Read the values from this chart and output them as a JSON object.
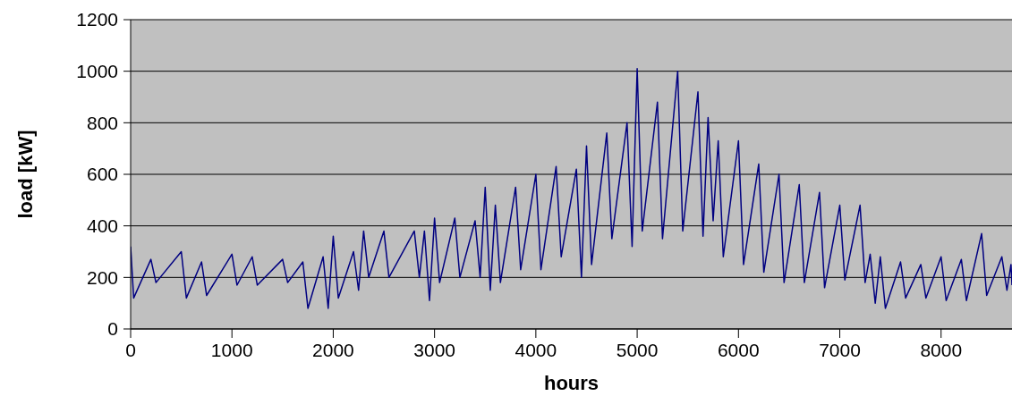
{
  "chart_data": {
    "type": "line",
    "xlabel": "hours",
    "ylabel": "load [kW]",
    "color": "#000080",
    "marker": "none",
    "grid": "y",
    "x": [
      0,
      30,
      200,
      250,
      500,
      550,
      700,
      750,
      1000,
      1050,
      1200,
      1250,
      1500,
      1550,
      1700,
      1750,
      1900,
      1950,
      2000,
      2050,
      2200,
      2250,
      2300,
      2350,
      2500,
      2550,
      2800,
      2850,
      2900,
      2950,
      3000,
      3050,
      3200,
      3250,
      3400,
      3450,
      3500,
      3550,
      3600,
      3650,
      3800,
      3850,
      4000,
      4050,
      4200,
      4250,
      4400,
      4450,
      4500,
      4550,
      4700,
      4750,
      4900,
      4950,
      5000,
      5050,
      5200,
      5250,
      5400,
      5450,
      5600,
      5650,
      5700,
      5750,
      5800,
      5850,
      6000,
      6050,
      6200,
      6250,
      6400,
      6450,
      6600,
      6650,
      6800,
      6850,
      7000,
      7050,
      7200,
      7250,
      7300,
      7350,
      7400,
      7450,
      7600,
      7650,
      7800,
      7850,
      8000,
      8050,
      8200,
      8250,
      8400,
      8450,
      8600,
      8650,
      8690,
      8700
    ],
    "values": [
      320,
      120,
      270,
      180,
      300,
      120,
      260,
      130,
      290,
      170,
      280,
      170,
      270,
      180,
      260,
      80,
      280,
      80,
      360,
      120,
      300,
      150,
      380,
      200,
      380,
      200,
      380,
      200,
      380,
      110,
      430,
      180,
      430,
      200,
      420,
      200,
      550,
      150,
      480,
      180,
      550,
      230,
      600,
      230,
      630,
      280,
      620,
      200,
      710,
      250,
      760,
      350,
      800,
      320,
      1010,
      380,
      880,
      350,
      1000,
      380,
      920,
      360,
      820,
      420,
      730,
      280,
      730,
      250,
      640,
      220,
      600,
      180,
      560,
      180,
      530,
      160,
      480,
      190,
      480,
      180,
      290,
      100,
      280,
      80,
      260,
      120,
      250,
      120,
      280,
      110,
      270,
      110,
      370,
      130,
      280,
      150,
      250,
      170
    ],
    "xlim": [
      0,
      8700
    ],
    "xticks": [
      0,
      1000,
      2000,
      3000,
      4000,
      5000,
      6000,
      7000,
      8000
    ],
    "ylim": [
      0,
      1200
    ],
    "yticks": [
      0,
      200,
      400,
      600,
      800,
      1000,
      1200
    ]
  }
}
